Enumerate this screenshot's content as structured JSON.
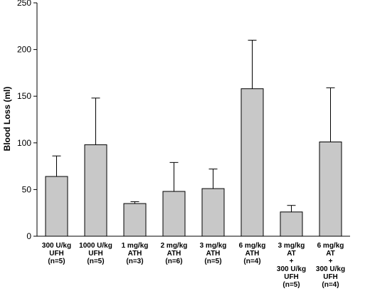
{
  "chart_data": {
    "type": "bar",
    "title": "",
    "xlabel": "",
    "ylabel": "Blood Loss (ml)",
    "ylim": [
      0,
      250
    ],
    "yticks": [
      0,
      50,
      100,
      150,
      200,
      250
    ],
    "grid": false,
    "categories": [
      [
        "300 U/kg",
        "UFH",
        "(n=5)"
      ],
      [
        "1000 U/kg",
        "UFH",
        "(n=5)"
      ],
      [
        "1 mg/kg",
        "ATH",
        "(n=3)"
      ],
      [
        "2 mg/kg",
        "ATH",
        "(n=6)"
      ],
      [
        "3 mg/kg",
        "ATH",
        "(n=5)"
      ],
      [
        "6 mg/kg",
        "ATH",
        "(n=4)"
      ],
      [
        "3 mg/kg",
        "AT",
        "+",
        "300 U/kg",
        "UFH",
        "(n=5)"
      ],
      [
        "6 mg/kg",
        "AT",
        "+",
        "300 U/kg",
        "UFH",
        "(n=4)"
      ]
    ],
    "values": [
      64,
      98,
      35,
      48,
      51,
      158,
      26,
      101
    ],
    "error_upper": [
      86,
      148,
      37,
      79,
      72,
      210,
      33,
      159
    ],
    "colors": {
      "bar_fill": "#c8c8c8",
      "bar_stroke": "#000000",
      "axis": "#000000"
    }
  }
}
